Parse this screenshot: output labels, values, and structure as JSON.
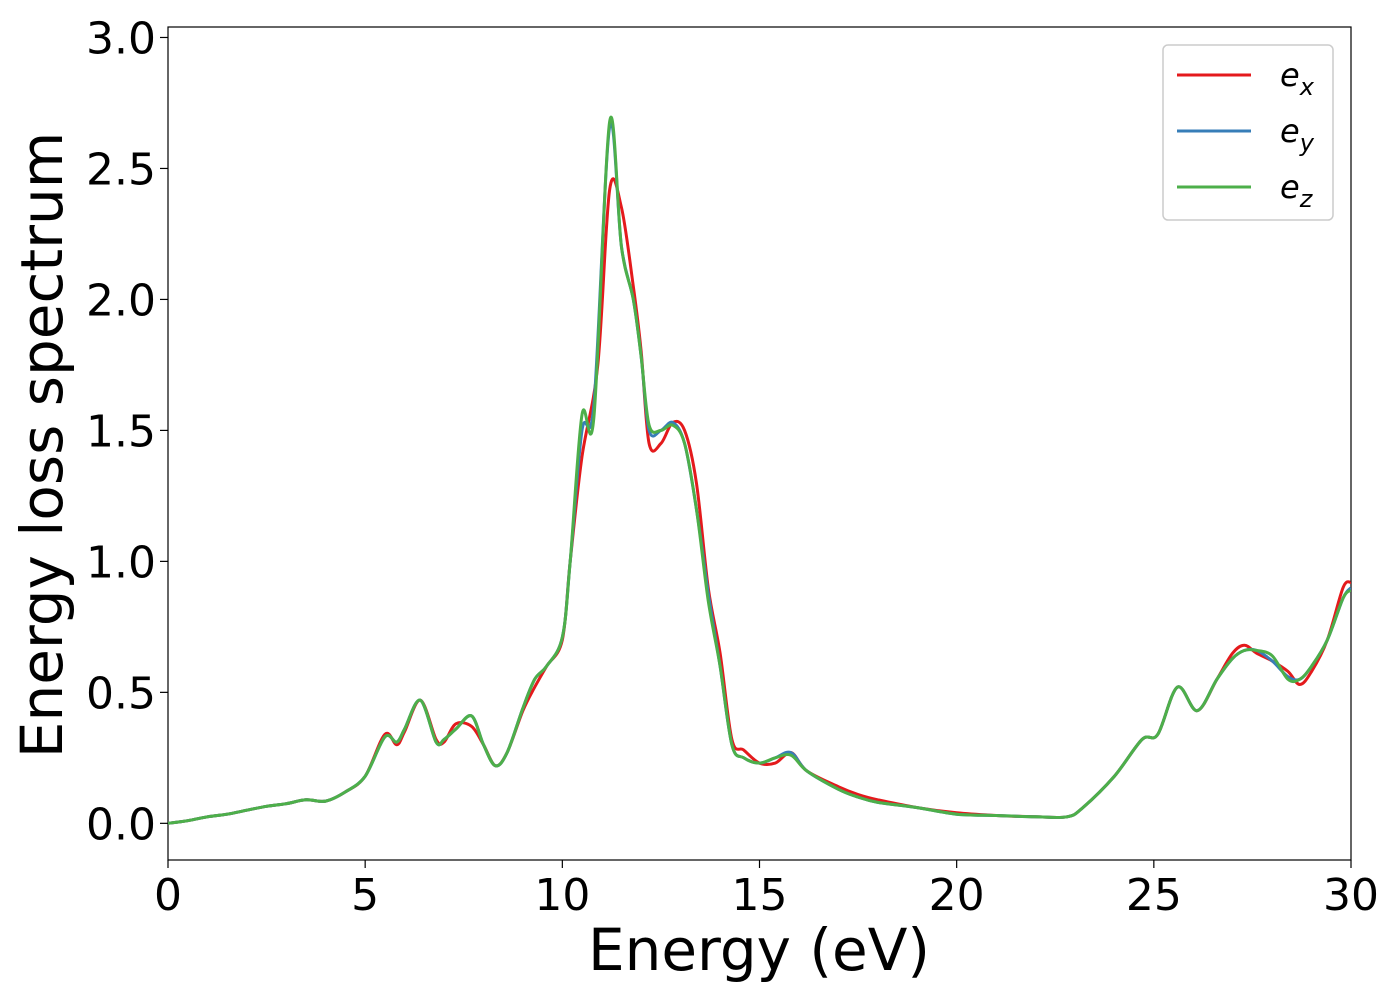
{
  "chart_data": {
    "type": "line",
    "title": "",
    "xlabel": "Energy (eV)",
    "ylabel": "Energy loss spectrum",
    "xlim": [
      0,
      30
    ],
    "ylim": [
      -0.14,
      3.04
    ],
    "xticks": [
      0,
      5,
      10,
      15,
      20,
      25,
      30
    ],
    "xtick_labels": [
      "0",
      "5",
      "10",
      "15",
      "20",
      "25",
      "30"
    ],
    "yticks": [
      0.0,
      0.5,
      1.0,
      1.5,
      2.0,
      2.5,
      3.0
    ],
    "ytick_labels": [
      "0.0",
      "0.5",
      "1.0",
      "1.5",
      "2.0",
      "2.5",
      "3.0"
    ],
    "grid": false,
    "legend_position": "top-right",
    "series": [
      {
        "base": "e",
        "sub": "x",
        "color": "#e41a1c",
        "points": [
          [
            0,
            0.0
          ],
          [
            0.5,
            0.01
          ],
          [
            1,
            0.025
          ],
          [
            1.5,
            0.035
          ],
          [
            2,
            0.05
          ],
          [
            2.5,
            0.065
          ],
          [
            3,
            0.075
          ],
          [
            3.5,
            0.09
          ],
          [
            4,
            0.085
          ],
          [
            4.5,
            0.12
          ],
          [
            5,
            0.18
          ],
          [
            5.5,
            0.34
          ],
          [
            5.8,
            0.3
          ],
          [
            6,
            0.35
          ],
          [
            6.4,
            0.47
          ],
          [
            6.8,
            0.32
          ],
          [
            7,
            0.31
          ],
          [
            7.3,
            0.38
          ],
          [
            7.7,
            0.37
          ],
          [
            8,
            0.3
          ],
          [
            8.3,
            0.22
          ],
          [
            8.6,
            0.27
          ],
          [
            9,
            0.43
          ],
          [
            9.3,
            0.52
          ],
          [
            9.6,
            0.6
          ],
          [
            10,
            0.7
          ],
          [
            10.2,
            1.0
          ],
          [
            10.5,
            1.4
          ],
          [
            10.9,
            1.75
          ],
          [
            11.2,
            2.42
          ],
          [
            11.5,
            2.35
          ],
          [
            11.8,
            2.05
          ],
          [
            12,
            1.8
          ],
          [
            12.2,
            1.45
          ],
          [
            12.5,
            1.45
          ],
          [
            12.8,
            1.53
          ],
          [
            13.1,
            1.5
          ],
          [
            13.4,
            1.3
          ],
          [
            13.7,
            0.9
          ],
          [
            14,
            0.65
          ],
          [
            14.3,
            0.32
          ],
          [
            14.6,
            0.28
          ],
          [
            15,
            0.23
          ],
          [
            15.4,
            0.23
          ],
          [
            15.8,
            0.27
          ],
          [
            16.2,
            0.2
          ],
          [
            17,
            0.14
          ],
          [
            17.5,
            0.11
          ],
          [
            18,
            0.09
          ],
          [
            19,
            0.06
          ],
          [
            20,
            0.04
          ],
          [
            21,
            0.03
          ],
          [
            22,
            0.025
          ],
          [
            22.8,
            0.025
          ],
          [
            23.2,
            0.06
          ],
          [
            24,
            0.18
          ],
          [
            24.7,
            0.32
          ],
          [
            25.1,
            0.34
          ],
          [
            25.6,
            0.52
          ],
          [
            26.1,
            0.43
          ],
          [
            26.6,
            0.55
          ],
          [
            27,
            0.65
          ],
          [
            27.3,
            0.68
          ],
          [
            27.6,
            0.65
          ],
          [
            28,
            0.62
          ],
          [
            28.4,
            0.58
          ],
          [
            28.7,
            0.53
          ],
          [
            29,
            0.58
          ],
          [
            29.4,
            0.7
          ],
          [
            29.8,
            0.9
          ],
          [
            30,
            0.92
          ]
        ]
      },
      {
        "base": "e",
        "sub": "y",
        "color": "#377eb8",
        "points": [
          [
            0,
            0.0
          ],
          [
            0.5,
            0.01
          ],
          [
            1,
            0.025
          ],
          [
            1.5,
            0.035
          ],
          [
            2,
            0.05
          ],
          [
            2.5,
            0.065
          ],
          [
            3,
            0.075
          ],
          [
            3.5,
            0.09
          ],
          [
            4,
            0.085
          ],
          [
            4.5,
            0.12
          ],
          [
            5,
            0.18
          ],
          [
            5.5,
            0.33
          ],
          [
            5.8,
            0.31
          ],
          [
            6,
            0.36
          ],
          [
            6.4,
            0.47
          ],
          [
            6.8,
            0.31
          ],
          [
            7,
            0.32
          ],
          [
            7.3,
            0.36
          ],
          [
            7.7,
            0.41
          ],
          [
            8,
            0.3
          ],
          [
            8.3,
            0.22
          ],
          [
            8.6,
            0.27
          ],
          [
            9,
            0.44
          ],
          [
            9.3,
            0.55
          ],
          [
            9.6,
            0.6
          ],
          [
            10,
            0.71
          ],
          [
            10.2,
            1.0
          ],
          [
            10.5,
            1.5
          ],
          [
            10.8,
            1.6
          ],
          [
            11.2,
            2.66
          ],
          [
            11.5,
            2.2
          ],
          [
            11.8,
            2.0
          ],
          [
            12,
            1.78
          ],
          [
            12.2,
            1.5
          ],
          [
            12.5,
            1.5
          ],
          [
            12.8,
            1.53
          ],
          [
            13.1,
            1.45
          ],
          [
            13.4,
            1.2
          ],
          [
            13.7,
            0.88
          ],
          [
            14,
            0.6
          ],
          [
            14.3,
            0.3
          ],
          [
            14.6,
            0.25
          ],
          [
            15,
            0.23
          ],
          [
            15.4,
            0.25
          ],
          [
            15.8,
            0.27
          ],
          [
            16.2,
            0.2
          ],
          [
            17,
            0.13
          ],
          [
            17.5,
            0.1
          ],
          [
            18,
            0.08
          ],
          [
            19,
            0.06
          ],
          [
            20,
            0.035
          ],
          [
            21,
            0.03
          ],
          [
            22,
            0.025
          ],
          [
            22.8,
            0.025
          ],
          [
            23.2,
            0.06
          ],
          [
            24,
            0.18
          ],
          [
            24.7,
            0.32
          ],
          [
            25.1,
            0.34
          ],
          [
            25.6,
            0.52
          ],
          [
            26.1,
            0.43
          ],
          [
            26.6,
            0.55
          ],
          [
            27,
            0.63
          ],
          [
            27.3,
            0.66
          ],
          [
            27.6,
            0.66
          ],
          [
            28,
            0.62
          ],
          [
            28.4,
            0.56
          ],
          [
            28.7,
            0.55
          ],
          [
            29,
            0.6
          ],
          [
            29.4,
            0.7
          ],
          [
            29.8,
            0.86
          ],
          [
            30,
            0.9
          ]
        ]
      },
      {
        "base": "e",
        "sub": "z",
        "color": "#4daf4a",
        "points": [
          [
            0,
            0.0
          ],
          [
            0.5,
            0.01
          ],
          [
            1,
            0.025
          ],
          [
            1.5,
            0.035
          ],
          [
            2,
            0.05
          ],
          [
            2.5,
            0.065
          ],
          [
            3,
            0.075
          ],
          [
            3.5,
            0.09
          ],
          [
            4,
            0.085
          ],
          [
            4.5,
            0.12
          ],
          [
            5,
            0.18
          ],
          [
            5.5,
            0.33
          ],
          [
            5.8,
            0.31
          ],
          [
            6,
            0.36
          ],
          [
            6.4,
            0.47
          ],
          [
            6.8,
            0.31
          ],
          [
            7,
            0.32
          ],
          [
            7.3,
            0.36
          ],
          [
            7.7,
            0.41
          ],
          [
            8,
            0.3
          ],
          [
            8.3,
            0.22
          ],
          [
            8.6,
            0.27
          ],
          [
            9,
            0.44
          ],
          [
            9.3,
            0.55
          ],
          [
            9.6,
            0.6
          ],
          [
            10,
            0.71
          ],
          [
            10.2,
            1.0
          ],
          [
            10.5,
            1.56
          ],
          [
            10.8,
            1.55
          ],
          [
            11.2,
            2.68
          ],
          [
            11.5,
            2.2
          ],
          [
            11.8,
            2.0
          ],
          [
            12,
            1.78
          ],
          [
            12.2,
            1.52
          ],
          [
            12.5,
            1.5
          ],
          [
            12.8,
            1.52
          ],
          [
            13.1,
            1.45
          ],
          [
            13.4,
            1.2
          ],
          [
            13.7,
            0.85
          ],
          [
            14,
            0.6
          ],
          [
            14.3,
            0.3
          ],
          [
            14.6,
            0.25
          ],
          [
            15,
            0.23
          ],
          [
            15.4,
            0.25
          ],
          [
            15.8,
            0.26
          ],
          [
            16.2,
            0.2
          ],
          [
            17,
            0.13
          ],
          [
            17.5,
            0.1
          ],
          [
            18,
            0.08
          ],
          [
            19,
            0.06
          ],
          [
            20,
            0.035
          ],
          [
            21,
            0.03
          ],
          [
            22,
            0.025
          ],
          [
            22.8,
            0.025
          ],
          [
            23.2,
            0.06
          ],
          [
            24,
            0.18
          ],
          [
            24.7,
            0.32
          ],
          [
            25.1,
            0.34
          ],
          [
            25.6,
            0.52
          ],
          [
            26.1,
            0.43
          ],
          [
            26.6,
            0.55
          ],
          [
            27,
            0.63
          ],
          [
            27.3,
            0.66
          ],
          [
            27.6,
            0.66
          ],
          [
            28,
            0.64
          ],
          [
            28.4,
            0.55
          ],
          [
            28.7,
            0.55
          ],
          [
            29,
            0.6
          ],
          [
            29.4,
            0.7
          ],
          [
            29.8,
            0.86
          ],
          [
            30,
            0.89
          ]
        ]
      }
    ]
  }
}
